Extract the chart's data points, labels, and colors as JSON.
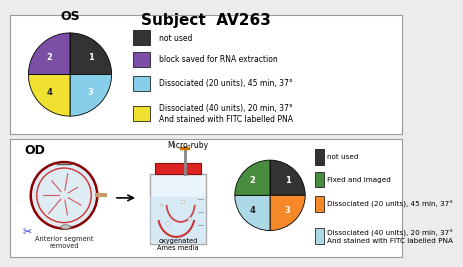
{
  "title": "Subject  AV263",
  "title_fontsize": 11,
  "title_fontweight": "bold",
  "bg_color": "#ececec",
  "panel_bg": "#ffffff",
  "os_label": "OS",
  "os_pie_colors": [
    "#333333",
    "#7b4fa6",
    "#87ceeb",
    "#f0e030"
  ],
  "os_pie_sizes": [
    25,
    25,
    25,
    25
  ],
  "os_legend": [
    {
      "color": "#333333",
      "text": "not used"
    },
    {
      "color": "#7b4fa6",
      "text": "block saved for RNA extraction"
    },
    {
      "color": "#87ceeb",
      "text": "Dissociated (20 units), 45 min, 37°"
    },
    {
      "color": "#f0e030",
      "text": "Dissociated (40 units), 20 min, 37°\nAnd stained with FITC labelled PNA"
    }
  ],
  "od_label": "OD",
  "od_pie_colors": [
    "#333333",
    "#4a8c3f",
    "#f5892a",
    "#add8e6"
  ],
  "od_pie_sizes": [
    25,
    25,
    25,
    25
  ],
  "od_legend": [
    {
      "color": "#333333",
      "text": "not used"
    },
    {
      "color": "#4a8c3f",
      "text": "Fixed and imaged"
    },
    {
      "color": "#f5892a",
      "text": "Dissociated (20 units), 45 min, 37°"
    },
    {
      "color": "#add8e6",
      "text": "Dissociated (40 units), 20 min, 37°\nAnd stained with FITC labelled PNA"
    }
  ],
  "micro_ruby_label": "Micro-ruby",
  "ant_seg_label": "Anterior segment\nremoved",
  "ames_label": "oxygenated\nAmes media"
}
